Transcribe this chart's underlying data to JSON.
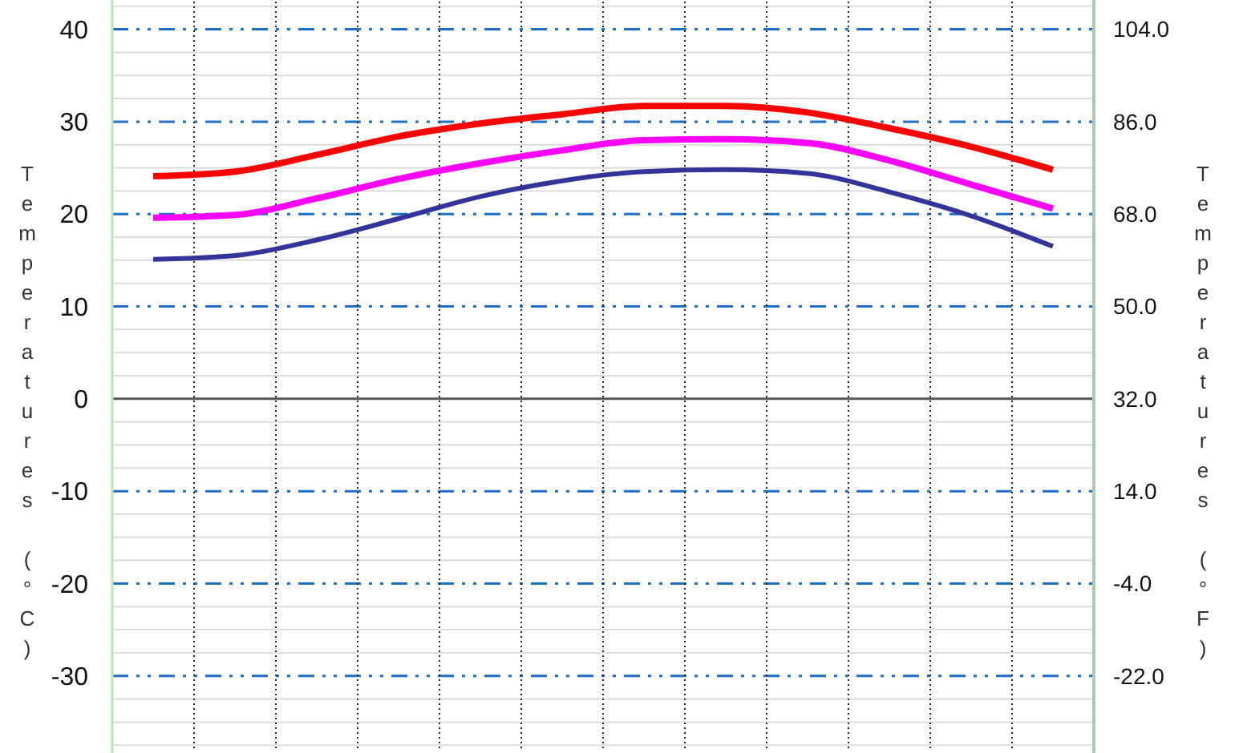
{
  "chart_data": {
    "type": "line",
    "categories": [
      null,
      null,
      null,
      null,
      null,
      null,
      null,
      null,
      null,
      null,
      null,
      null
    ],
    "series": [
      {
        "color": "#ff0000",
        "values": [
          24.1,
          24.6,
          26.4,
          28.4,
          29.8,
          30.8,
          31.7,
          31.7,
          31.0,
          29.3,
          27.3,
          24.8
        ]
      },
      {
        "color": "#ff00ff",
        "values": [
          19.6,
          19.9,
          21.7,
          23.8,
          25.5,
          26.9,
          28.0,
          28.1,
          27.7,
          25.8,
          23.2,
          20.6
        ]
      },
      {
        "color": "#333399",
        "values": [
          15.1,
          15.5,
          17.2,
          19.5,
          21.9,
          23.6,
          24.6,
          24.8,
          24.4,
          22.4,
          19.8,
          16.5
        ]
      }
    ],
    "ylabel": "Temperatures (°C)",
    "y2label": "Temperatures (°F)",
    "ylim": [
      -38,
      43
    ],
    "yticks": [
      {
        "value": -37.5,
        "label": null
      },
      {
        "value": -35,
        "label": null
      },
      {
        "value": -32.5,
        "label": null
      },
      -30,
      {
        "value": -27.5,
        "label": null
      },
      {
        "value": -25,
        "label": null
      },
      {
        "value": -22.5,
        "label": null
      },
      -20,
      {
        "value": -17.5,
        "label": null
      },
      {
        "value": -15,
        "label": null
      },
      {
        "value": -12.5,
        "label": null
      },
      -10,
      {
        "value": -7.5,
        "label": null
      },
      {
        "value": -5,
        "label": null
      },
      {
        "value": -2.5,
        "label": null
      },
      0,
      {
        "value": 2.5,
        "label": null
      },
      {
        "value": 5,
        "label": null
      },
      {
        "value": 7.5,
        "label": null
      },
      10,
      {
        "value": 12.5,
        "label": null
      },
      {
        "value": 15,
        "label": null
      },
      {
        "value": 17.5,
        "label": null
      },
      20,
      {
        "value": 22.5,
        "label": null
      },
      {
        "value": 25,
        "label": null
      },
      {
        "value": 27.5,
        "label": null
      },
      30,
      {
        "value": 32.5,
        "label": null
      },
      {
        "value": 35,
        "label": null
      },
      {
        "value": 37.5,
        "label": null
      },
      40,
      {
        "value": 42.5,
        "label": null
      }
    ],
    "y2lim": [
      -36.4,
      109.4
    ],
    "y2ticks": [
      {
        "value": -22,
        "label": "-22.0"
      },
      {
        "value": -4,
        "label": "-4.0"
      },
      {
        "value": 14,
        "label": "14.0"
      },
      {
        "value": 32,
        "label": "32.0"
      },
      {
        "value": 50,
        "label": "50.0"
      },
      {
        "value": 68,
        "label": "68.0"
      },
      {
        "value": 86,
        "label": "86.0"
      },
      {
        "value": 104,
        "label": "104.0"
      }
    ],
    "grid": true
  }
}
